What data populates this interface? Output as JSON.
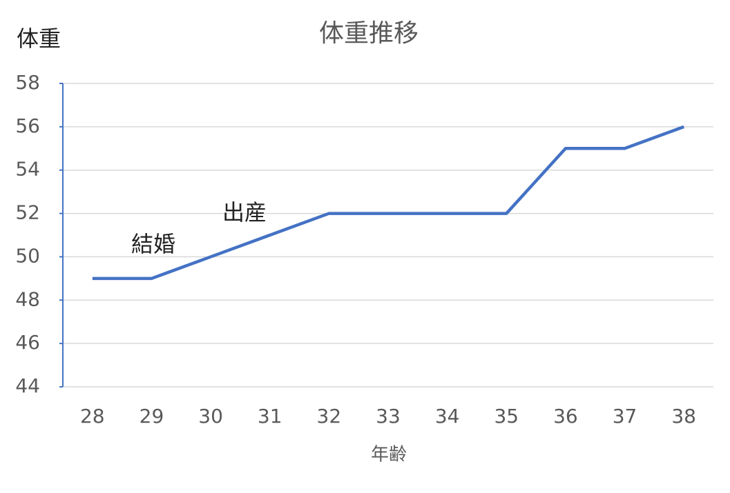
{
  "chart_data": {
    "type": "line",
    "title": "体重推移",
    "y_label": "体重",
    "x_label": "年齢",
    "categories": [
      "28",
      "29",
      "30",
      "31",
      "32",
      "33",
      "34",
      "35",
      "36",
      "37",
      "38"
    ],
    "values": [
      49,
      49,
      50,
      51,
      52,
      52,
      52,
      52,
      55,
      55,
      56
    ],
    "color": "#4472c4",
    "ylim": [
      44,
      58
    ],
    "yticks": [
      44,
      46,
      48,
      50,
      52,
      54,
      56,
      58
    ],
    "grid": true,
    "annotations": [
      "結婚",
      "出産"
    ]
  }
}
